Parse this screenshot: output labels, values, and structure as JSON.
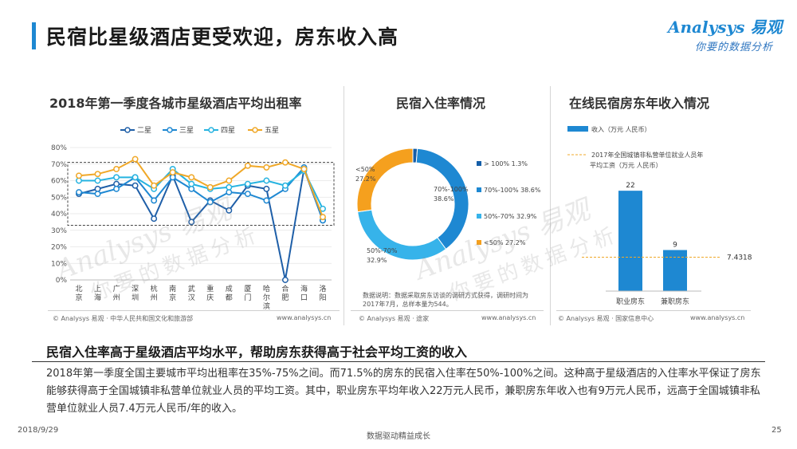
{
  "header": {
    "title": "民宿比星级酒店更受欢迎，房东收入高",
    "logo_name": "Analysys 易观",
    "logo_slogan": "你要的数据分析"
  },
  "watermark": {
    "line1": "Analysys 易观",
    "line2": "你要的数据分析"
  },
  "panels": {
    "left": {
      "title": "2018年第一季度各城市星级酒店平均出租率",
      "source": "© Analysys 易观 · 中华人民共和国文化和旅游部",
      "site": "www.analysys.cn"
    },
    "middle": {
      "title": "民宿入住率情况",
      "source": "© Analysys 易观 · 途家",
      "site": "www.analysys.cn"
    },
    "right": {
      "title": "在线民宿房东年收入情况",
      "source": "© Analysys 易观 · 国家信息中心",
      "site": "www.analysys.cn"
    }
  },
  "chart_data": [
    {
      "type": "line",
      "categories": [
        "北京",
        "上海",
        "广州",
        "深圳",
        "杭州",
        "南京",
        "武汉",
        "重庆",
        "成都",
        "厦门",
        "哈尔滨",
        "合肥",
        "海口",
        "洛阳"
      ],
      "yticks": [
        "0%",
        "10%",
        "20%",
        "30%",
        "40%",
        "50%",
        "60%",
        "70%",
        "80%"
      ],
      "ylim": [
        0,
        80
      ],
      "grid": true,
      "legend_position": "top",
      "series": [
        {
          "name": "二星",
          "color": "#1f5fa8",
          "values": [
            52,
            55,
            58,
            57,
            37,
            63,
            35,
            48,
            42,
            57,
            55,
            0,
            67,
            36
          ]
        },
        {
          "name": "三星",
          "color": "#1e88d2",
          "values": [
            53,
            52,
            55,
            62,
            48,
            62,
            55,
            47,
            53,
            52,
            48,
            55,
            68,
            36
          ]
        },
        {
          "name": "四星",
          "color": "#26b3e0",
          "values": [
            60,
            60,
            62,
            62,
            55,
            67,
            58,
            55,
            56,
            58,
            60,
            57,
            66,
            43
          ]
        },
        {
          "name": "五星",
          "color": "#f0a828",
          "values": [
            63,
            64,
            67,
            73,
            57,
            65,
            62,
            56,
            60,
            69,
            68,
            71,
            67,
            38
          ]
        }
      ]
    },
    {
      "type": "pie",
      "variant": "donut",
      "labels": [
        "> 100%",
        "70%-100%",
        "50%-70%",
        "<50%"
      ],
      "values": [
        1.3,
        38.6,
        32.9,
        27.2
      ],
      "colors": [
        "#155ea8",
        "#1e88d2",
        "#36b3ea",
        "#f5a01e"
      ],
      "legend_items": [
        "> 100% 1.3%",
        "70%-100% 38.6%",
        "50%-70% 32.9%",
        "<50% 27.2%"
      ],
      "callouts": [
        {
          "lines": [
            "<50%",
            "27.2%"
          ]
        },
        {
          "lines": [
            "70%-100%",
            "38.6%"
          ]
        },
        {
          "lines": [
            "50%-70%",
            "32.9%"
          ]
        }
      ],
      "note": "数据说明：数据采取房东访谈的调研方式获得，调研时间为2017年7月，总样本量为544。"
    },
    {
      "type": "bar",
      "categories": [
        "职业房东",
        "兼职房东"
      ],
      "values": [
        22,
        9
      ],
      "ylim": [
        0,
        25
      ],
      "series_name": "收入（万元 人民币）",
      "bar_color": "#1e88d2",
      "reference": {
        "value": 7.4318,
        "label": "7.4318",
        "legend": "2017年全国城镇非私营单位就业人员年平均工资（万元 人民币）",
        "color": "#f0a828"
      }
    }
  ],
  "conclusion": {
    "title": "民宿入住率高于星级酒店平均水平，帮助房东获得高于社会平均工资的收入",
    "body": "2018年第一季度全国主要城市平均出租率在35%-75%之间。而71.5%的房东的民宿入住率在50%-100%之间。这种高于星级酒店的入住率水平保证了房东能够获得高于全国城镇非私营单位就业人员的平均工资。其中，职业房东平均年收入22万元人民币，兼职房东年收入也有9万元人民币，远高于全国城镇非私营单位就业人员7.4万元人民币/年的收入。"
  },
  "footer": {
    "date": "2018/9/29",
    "slogan": "数据驱动精益成长",
    "page": "25"
  }
}
